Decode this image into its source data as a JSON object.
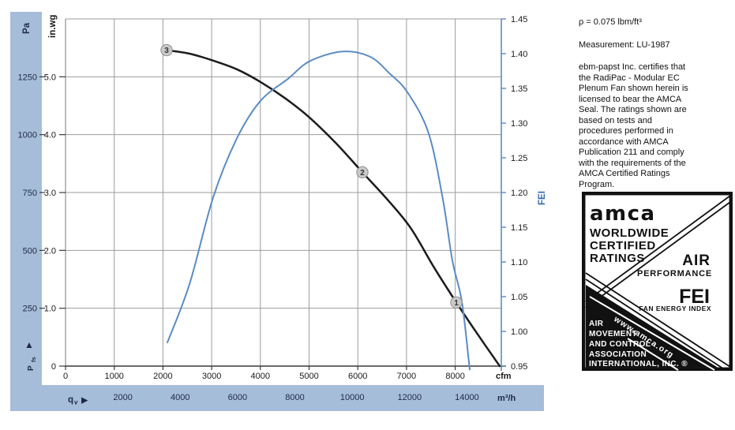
{
  "colors": {
    "band_blue": "#a6bdd9",
    "grid_gray": "#9b9b9b",
    "axis_line": "#3a3a3a",
    "text_dark": "#1a1a1a",
    "text_navy": "#1e2a45",
    "curve_blue": "#5b8cc4",
    "fei_label_blue": "#2f67a8",
    "marker_fill": "#c9c9c9",
    "marker_stroke": "#8f8f8f",
    "seal_black": "#111111"
  },
  "chart_data": {
    "type": "line",
    "title": "",
    "grid": true,
    "axes": {
      "x": {
        "unit_top": "cfm",
        "unit_bottom": "m³/h",
        "symbol": "q",
        "symbol_sub": "v",
        "arrow": "▶",
        "ticks_cfm": [
          0,
          1000,
          2000,
          3000,
          4000,
          5000,
          6000,
          7000,
          8000
        ],
        "ticks_m3h": [
          2000,
          4000,
          6000,
          8000,
          10000,
          12000,
          14000
        ],
        "cfm_range": [
          0,
          8950
        ],
        "m3h_per_cfm": 1.699
      },
      "y_left": {
        "units": [
          "Pa",
          "in.wg"
        ],
        "symbol": "P",
        "symbol_sub": "fs",
        "arrow": "▲",
        "ticks_inwg": [
          "0",
          "1.0",
          "2.0",
          "3.0",
          "4.0",
          "5.0"
        ],
        "ticks_pa": [
          250,
          500,
          750,
          1000,
          1250
        ],
        "inwg_range": [
          0,
          6.0
        ]
      },
      "y_right": {
        "label": "FEI",
        "ticks": [
          "1.45",
          "1.40",
          "1.35",
          "1.30",
          "1.25",
          "1.20",
          "1.15",
          "1.10",
          "1.05",
          "1.00",
          "0.95"
        ],
        "range": [
          0.95,
          1.45
        ]
      }
    },
    "series": [
      {
        "name": "fan_static_pressure",
        "color": "#1c1c1c",
        "y_axis": "in.wg",
        "points": [
          [
            2075,
            5.46
          ],
          [
            2545,
            5.4
          ],
          [
            3031,
            5.28
          ],
          [
            3517,
            5.13
          ],
          [
            4003,
            4.91
          ],
          [
            4490,
            4.64
          ],
          [
            4976,
            4.32
          ],
          [
            5543,
            3.86
          ],
          [
            6094,
            3.35
          ],
          [
            6596,
            2.89
          ],
          [
            7083,
            2.39
          ],
          [
            7569,
            1.7
          ],
          [
            8023,
            1.1
          ],
          [
            8477,
            0.53
          ],
          [
            8914,
            0.0
          ]
        ]
      },
      {
        "name": "fan_energy_index",
        "color": "#5b8cc4",
        "y_axis": "FEI",
        "points": [
          [
            2091,
            0.984
          ],
          [
            2545,
            1.068
          ],
          [
            3031,
            1.193
          ],
          [
            3517,
            1.278
          ],
          [
            4003,
            1.332
          ],
          [
            4571,
            1.364
          ],
          [
            5008,
            1.389
          ],
          [
            5673,
            1.403
          ],
          [
            6240,
            1.396
          ],
          [
            6645,
            1.372
          ],
          [
            7034,
            1.343
          ],
          [
            7455,
            1.285
          ],
          [
            7747,
            1.19
          ],
          [
            7941,
            1.102
          ],
          [
            8136,
            1.043
          ],
          [
            8298,
            0.945
          ]
        ]
      }
    ],
    "operating_points": [
      {
        "label": "3",
        "cfm": 2075,
        "inwg": 5.46
      },
      {
        "label": "2",
        "cfm": 6094,
        "inwg": 3.35
      },
      {
        "label": "1",
        "cfm": 8023,
        "inwg": 1.1
      }
    ]
  },
  "side_panel": {
    "density_line": "ρ = 0.075 lbm/ft³",
    "measurement_line": "Measurement: LU-1987",
    "certification_text": "ebm-papst Inc. certifies that\nthe RadiPac - Modular EC\nPlenum Fan shown herein is\nlicensed to bear the AMCA\nSeal. The ratings shown are\nbased on tests and\nprocedures performed in\naccordance with AMCA\nPublication 211 and comply\nwith the requirements of the\nAMCA Certified Ratings\nProgram."
  },
  "seal": {
    "logo": "amca",
    "line1": "WORLDWIDE",
    "line2": "CERTIFIED",
    "line3": "RATINGS",
    "air": "AIR",
    "performance": "PERFORMANCE",
    "fei": "FEI",
    "fei_sub": "FAN ENERGY INDEX",
    "assoc1": "AIR",
    "assoc2": "MOVEMENT",
    "assoc3": "AND CONTROL",
    "assoc4": "ASSOCIATION",
    "assoc5": "INTERNATIONAL, INC. ®",
    "url": "www.amca.org"
  }
}
